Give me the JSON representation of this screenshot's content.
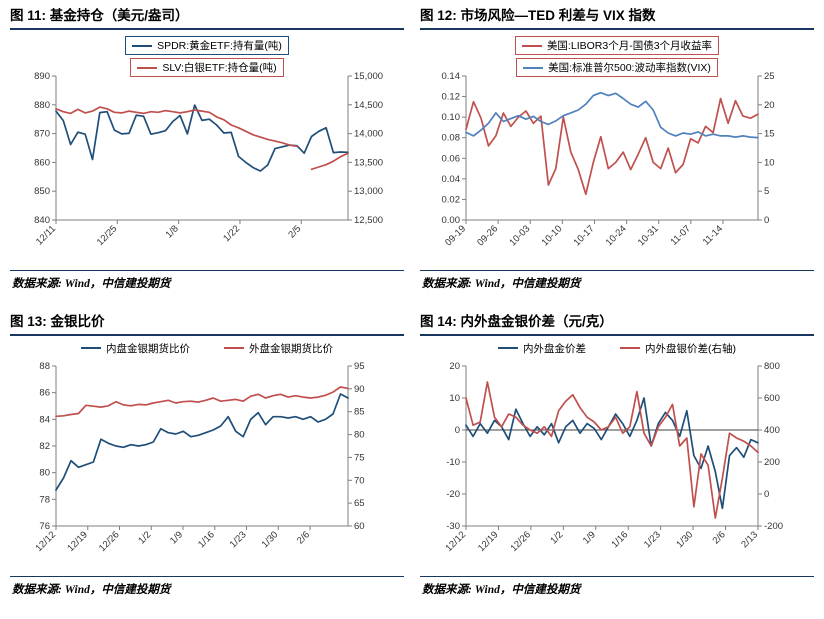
{
  "page": {
    "background": "#ffffff",
    "accent_navy": "#17375E",
    "line_blue": "#1F4E79",
    "line_red": "#C0504D"
  },
  "chart_data": [
    {
      "id": "fig11",
      "type": "line",
      "title": "图 11: 基金持仓（美元/盎司）",
      "source": "数据来源: Wind，中信建投期货",
      "legend_layout": "vertical",
      "legend_position": "top-center",
      "grid": false,
      "x_labels": [
        "12/11",
        "12/25",
        "1/8",
        "1/22",
        "2/5"
      ],
      "x_label_span": 0.84,
      "left_axis": {
        "ticks": [
          "840",
          "850",
          "860",
          "870",
          "880",
          "890"
        ],
        "min": 840,
        "max": 890
      },
      "right_axis": {
        "ticks": [
          "12,500",
          "13,000",
          "13,500",
          "14,000",
          "14,500",
          "15,000"
        ],
        "min": 12500,
        "max": 15000
      },
      "series": [
        {
          "name": "SPDR:黄金ETF:持有量(吨)",
          "color": "#1F4E79",
          "axis": "left",
          "legend_border": "#1F4E79",
          "values": [
            877.8,
            874.5,
            866.2,
            870.5,
            869.8,
            861.0,
            877.3,
            877.6,
            871.2,
            869.9,
            870.1,
            876.4,
            876.0,
            869.8,
            870.3,
            871.0,
            874.2,
            876.3,
            869.9,
            879.9,
            874.6,
            875.0,
            873.0,
            870.2,
            870.4,
            862.1,
            860.0,
            858.2,
            857.0,
            859.1,
            864.8,
            865.4,
            866.0,
            865.8,
            863.2,
            869.0,
            870.8,
            872.0,
            863.4,
            863.6,
            863.5
          ]
        },
        {
          "name": "SLV:白银ETF:持仓量(吨)",
          "color": "#C0504D",
          "axis": "right",
          "legend_border": "#C0504D",
          "values": [
            14430,
            14380,
            14350,
            14420,
            14360,
            14390,
            14460,
            14430,
            14370,
            14360,
            14390,
            14370,
            14350,
            14380,
            14370,
            14400,
            14380,
            14360,
            14380,
            14410,
            14390,
            14370,
            14290,
            14240,
            14150,
            14100,
            14040,
            13980,
            13940,
            13900,
            13870,
            13840,
            13800,
            13780,
            null,
            13380,
            13420,
            13460,
            13520,
            13600,
            13660
          ]
        }
      ]
    },
    {
      "id": "fig12",
      "type": "line",
      "title": "图 12: 市场风险—TED 利差与 VIX 指数",
      "source": "数据来源: Wind，中信建投期货",
      "legend_layout": "vertical",
      "legend_position": "top-center",
      "grid": false,
      "x_labels": [
        "09-19",
        "09-26",
        "10-03",
        "10-10",
        "10-17",
        "10-24",
        "10-31",
        "11-07",
        "11-14"
      ],
      "x_label_span": 0.88,
      "left_axis": {
        "ticks": [
          "0.00",
          "0.02",
          "0.04",
          "0.06",
          "0.08",
          "0.10",
          "0.12",
          "0.14"
        ],
        "min": 0,
        "max": 0.14
      },
      "right_axis": {
        "ticks": [
          "0",
          "5",
          "10",
          "15",
          "20",
          "25"
        ],
        "min": 0,
        "max": 25
      },
      "series": [
        {
          "name": "美国:LIBOR3个月-国债3个月收益率",
          "color": "#C0504D",
          "axis": "left",
          "legend_border": "#C0504D",
          "values": [
            0.088,
            0.115,
            0.099,
            0.072,
            0.082,
            0.104,
            0.091,
            0.1,
            0.106,
            0.094,
            0.101,
            0.034,
            0.05,
            0.1,
            0.066,
            0.049,
            0.025,
            0.056,
            0.081,
            0.05,
            0.056,
            0.066,
            0.049,
            0.064,
            0.08,
            0.056,
            0.05,
            0.07,
            0.046,
            0.054,
            0.079,
            0.075,
            0.091,
            0.085,
            0.118,
            0.094,
            0.116,
            0.101,
            0.099,
            0.103
          ]
        },
        {
          "name": "美国:标准普尔500:波动率指数(VIX)",
          "color": "#4F81BD",
          "axis": "right",
          "legend_border": "#C0504D",
          "values": [
            15.2,
            14.6,
            15.6,
            16.8,
            18.6,
            17.1,
            17.6,
            18.1,
            17.5,
            18.0,
            17.1,
            16.6,
            17.2,
            18.1,
            18.6,
            19.1,
            20.1,
            21.6,
            22.1,
            21.6,
            22.0,
            21.1,
            20.1,
            19.6,
            20.6,
            19.1,
            16.1,
            15.1,
            14.6,
            15.1,
            14.9,
            15.3,
            14.6,
            14.9,
            14.6,
            14.6,
            14.4,
            14.6,
            14.4,
            14.3
          ]
        }
      ]
    },
    {
      "id": "fig13",
      "type": "line",
      "title": "图 13: 金银比价",
      "source": "数据来源: Wind，中信建投期货",
      "legend_layout": "horizontal",
      "legend_position": "top-center",
      "grid": false,
      "x_labels": [
        "12/12",
        "12/19",
        "12/26",
        "1/2",
        "1/9",
        "1/16",
        "1/23",
        "1/30",
        "2/6"
      ],
      "x_label_span": 0.87,
      "left_axis": {
        "ticks": [
          "76",
          "78",
          "80",
          "82",
          "84",
          "86",
          "88"
        ],
        "min": 76,
        "max": 88
      },
      "right_axis": {
        "ticks": [
          "60",
          "65",
          "70",
          "75",
          "80",
          "85",
          "90",
          "95"
        ],
        "min": 60,
        "max": 95
      },
      "series": [
        {
          "name": "内盘金银期货比价",
          "color": "#1F4E79",
          "axis": "left",
          "legend_border": null,
          "values": [
            78.7,
            79.6,
            80.9,
            80.4,
            80.6,
            80.8,
            82.5,
            82.2,
            82.0,
            81.9,
            82.1,
            82.0,
            82.1,
            82.3,
            83.3,
            83.0,
            82.9,
            83.1,
            82.7,
            82.8,
            83.0,
            83.2,
            83.5,
            84.2,
            83.1,
            82.7,
            84.0,
            84.5,
            83.6,
            84.2,
            84.2,
            84.1,
            84.2,
            84.0,
            84.2,
            83.8,
            84.0,
            84.4,
            85.9,
            85.6
          ]
        },
        {
          "name": "外盘金银期货比价",
          "color": "#C0504D",
          "axis": "right",
          "legend_border": null,
          "values": [
            84.0,
            84.1,
            84.4,
            84.6,
            86.4,
            86.2,
            86.0,
            86.3,
            87.2,
            86.5,
            86.3,
            86.6,
            86.5,
            86.9,
            87.2,
            87.5,
            86.9,
            87.2,
            87.3,
            87.1,
            87.5,
            88.0,
            87.3,
            87.5,
            87.7,
            87.3,
            88.4,
            88.8,
            88.0,
            88.5,
            88.8,
            88.2,
            88.5,
            88.2,
            88.0,
            88.2,
            88.6,
            89.3,
            90.4,
            90.1
          ]
        }
      ]
    },
    {
      "id": "fig14",
      "type": "line",
      "title": "图 14: 内外盘金银价差（元/克）",
      "source": "数据来源: Wind，中信建投期货",
      "legend_layout": "horizontal",
      "legend_position": "top-center",
      "grid": false,
      "zero_line": true,
      "x_labels": [
        "12/12",
        "12/19",
        "12/26",
        "1/2",
        "1/9",
        "1/16",
        "1/23",
        "1/30",
        "2/6",
        "2/13"
      ],
      "x_label_span": 1.0,
      "left_axis": {
        "ticks": [
          "-30",
          "-20",
          "-10",
          "0",
          "10",
          "20"
        ],
        "min": -30,
        "max": 20
      },
      "right_axis": {
        "ticks": [
          "-200",
          "0",
          "200",
          "400",
          "600",
          "800"
        ],
        "min": -200,
        "max": 800
      },
      "series": [
        {
          "name": "内外盘金价差",
          "color": "#1F4E79",
          "axis": "left",
          "legend_border": null,
          "values": [
            1.5,
            -2,
            2,
            -1,
            3,
            1,
            -3,
            6.5,
            2,
            -2,
            1,
            -1.5,
            2,
            -4,
            1,
            3,
            -1,
            2,
            0.5,
            -3,
            1,
            5,
            2,
            -2,
            3,
            10,
            -5,
            2,
            5.5,
            3,
            -2,
            6,
            -8,
            -12,
            -5,
            -13,
            -24.5,
            -8,
            -5.5,
            -8.5,
            -3,
            -4
          ]
        },
        {
          "name": "内外盘银价差(右轴)",
          "color": "#C0504D",
          "axis": "right",
          "legend_border": null,
          "values": [
            600,
            430,
            450,
            700,
            480,
            420,
            500,
            480,
            430,
            400,
            380,
            420,
            360,
            520,
            580,
            620,
            540,
            480,
            450,
            400,
            420,
            480,
            380,
            420,
            640,
            380,
            300,
            420,
            480,
            560,
            300,
            350,
            -80,
            250,
            180,
            -150,
            100,
            380,
            350,
            330,
            300,
            260
          ]
        }
      ]
    }
  ]
}
